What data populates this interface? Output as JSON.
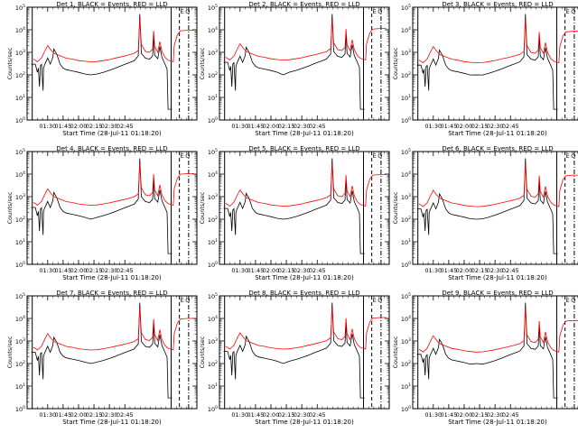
{
  "chart_data": [
    {
      "type": "line",
      "title": "Det 1, BLACK = Events, RED = LLD",
      "series_black_name": "Events",
      "series_red_name": "LLD",
      "xlabel": "Start Time (28-Jul-11 01:18:20)",
      "ylabel": "Counts/sec",
      "xtick_labels": [
        "01:30",
        "01:45",
        "02:00",
        "02:15",
        "02:30",
        "02:45"
      ],
      "ytick_exponents": [
        "0",
        "1",
        "2",
        "3",
        "4",
        "5"
      ],
      "yscale": "log",
      "ylim": [
        1,
        100000
      ],
      "marker_labels": [
        "E",
        "O"
      ]
    },
    {
      "type": "line",
      "title": "Det 2, BLACK = Events, RED = LLD",
      "series_black_name": "Events",
      "series_red_name": "LLD",
      "xlabel": "Start Time (28-Jul-11 01:18:20)",
      "ylabel": "Counts/sec",
      "xtick_labels": [
        "01:30",
        "01:45",
        "02:00",
        "02:15",
        "02:30",
        "02:45"
      ],
      "ytick_exponents": [
        "0",
        "1",
        "2",
        "3",
        "4",
        "5"
      ],
      "yscale": "log",
      "ylim": [
        1,
        100000
      ],
      "marker_labels": [
        "E",
        "O"
      ]
    },
    {
      "type": "line",
      "title": "Det 3, BLACK = Events, RED = LLD",
      "series_black_name": "Events",
      "series_red_name": "LLD",
      "xlabel": "Start Time (28-Jul-11 01:18:20)",
      "ylabel": "Counts/sec",
      "xtick_labels": [
        "01:30",
        "01:45",
        "02:00",
        "02:15",
        "02:30",
        "02:45"
      ],
      "ytick_exponents": [
        "0",
        "1",
        "2",
        "3",
        "4",
        "5"
      ],
      "yscale": "log",
      "ylim": [
        1,
        100000
      ],
      "marker_labels": [
        "E",
        "O"
      ]
    },
    {
      "type": "line",
      "title": "Det 4, BLACK = Events, RED = LLD",
      "series_black_name": "Events",
      "series_red_name": "LLD",
      "xlabel": "Start Time (28-Jul-11 01:18:20)",
      "ylabel": "Counts/sec",
      "xtick_labels": [
        "01:30",
        "01:45",
        "02:00",
        "02:15",
        "02:30",
        "02:45"
      ],
      "ytick_exponents": [
        "0",
        "1",
        "2",
        "3",
        "4",
        "5"
      ],
      "yscale": "log",
      "ylim": [
        1,
        100000
      ],
      "marker_labels": [
        "E",
        "O"
      ]
    },
    {
      "type": "line",
      "title": "Det 5, BLACK = Events, RED = LLD",
      "series_black_name": "Events",
      "series_red_name": "LLD",
      "xlabel": "Start Time (28-Jul-11 01:18:20)",
      "ylabel": "Counts/sec",
      "xtick_labels": [
        "01:30",
        "01:45",
        "02:00",
        "02:15",
        "02:30",
        "02:45"
      ],
      "ytick_exponents": [
        "0",
        "1",
        "2",
        "3",
        "4",
        "5"
      ],
      "yscale": "log",
      "ylim": [
        1,
        100000
      ],
      "marker_labels": [
        "E",
        "O"
      ]
    },
    {
      "type": "line",
      "title": "Det 6, BLACK = Events, RED = LLD",
      "series_black_name": "Events",
      "series_red_name": "LLD",
      "xlabel": "Start Time (28-Jul-11 01:18:20)",
      "ylabel": "Counts/sec",
      "xtick_labels": [
        "01:30",
        "01:45",
        "02:00",
        "02:15",
        "02:30",
        "02:45"
      ],
      "ytick_exponents": [
        "0",
        "1",
        "2",
        "3",
        "4",
        "5"
      ],
      "yscale": "log",
      "ylim": [
        1,
        100000
      ],
      "marker_labels": [
        "E",
        "O"
      ]
    },
    {
      "type": "line",
      "title": "Det 7, BLACK = Events, RED = LLD",
      "series_black_name": "Events",
      "series_red_name": "LLD",
      "xlabel": "Start Time (28-Jul-11 01:18:20)",
      "ylabel": "Counts/sec",
      "xtick_labels": [
        "01:30",
        "01:45",
        "02:00",
        "02:15",
        "02:30",
        "02:45"
      ],
      "ytick_exponents": [
        "0",
        "1",
        "2",
        "3",
        "4",
        "5"
      ],
      "yscale": "log",
      "ylim": [
        1,
        100000
      ],
      "marker_labels": [
        "E",
        "O"
      ]
    },
    {
      "type": "line",
      "title": "Det 8, BLACK = Events, RED = LLD",
      "series_black_name": "Events",
      "series_red_name": "LLD",
      "xlabel": "Start Time (28-Jul-11 01:18:20)",
      "ylabel": "Counts/sec",
      "xtick_labels": [
        "01:30",
        "01:45",
        "02:00",
        "02:15",
        "02:30",
        "02:45"
      ],
      "ytick_exponents": [
        "0",
        "1",
        "2",
        "3",
        "4",
        "5"
      ],
      "yscale": "log",
      "ylim": [
        1,
        100000
      ],
      "marker_labels": [
        "E",
        "O"
      ]
    },
    {
      "type": "line",
      "title": "Det 9, BLACK = Events, RED = LLD",
      "series_black_name": "Events",
      "series_red_name": "LLD",
      "xlabel": "Start Time (28-Jul-11 01:18:20)",
      "ylabel": "Counts/sec",
      "xtick_labels": [
        "01:30",
        "01:45",
        "02:00",
        "02:15",
        "02:30",
        "02:45"
      ],
      "ytick_exponents": [
        "0",
        "1",
        "2",
        "3",
        "4",
        "5"
      ],
      "yscale": "log",
      "ylim": [
        1,
        100000
      ],
      "marker_labels": [
        "E",
        "O"
      ]
    }
  ],
  "colors": {
    "events": "#000000",
    "lld": "#ff0000",
    "background": "#ffffff"
  },
  "approx_series": {
    "red": [
      [
        1,
        500
      ],
      [
        3,
        450
      ],
      [
        5,
        380
      ],
      [
        9,
        560
      ],
      [
        12,
        1100
      ],
      [
        15,
        2000
      ],
      [
        18,
        1300
      ],
      [
        21,
        900
      ],
      [
        27,
        700
      ],
      [
        33,
        550
      ],
      [
        39,
        500
      ],
      [
        45,
        430
      ],
      [
        51,
        400
      ],
      [
        57,
        380
      ],
      [
        63,
        390
      ],
      [
        69,
        430
      ],
      [
        75,
        480
      ],
      [
        81,
        560
      ],
      [
        87,
        640
      ],
      [
        93,
        750
      ],
      [
        99,
        900
      ],
      [
        103,
        1200
      ],
      [
        104.5,
        30000
      ],
      [
        106,
        2200
      ],
      [
        110,
        1100
      ],
      [
        114,
        1000
      ],
      [
        117,
        1400
      ],
      [
        118,
        9000
      ],
      [
        119,
        1800
      ],
      [
        122,
        1000
      ],
      [
        124,
        3000
      ],
      [
        126,
        1100
      ],
      [
        129,
        600
      ],
      [
        132,
        450
      ],
      [
        134,
        420
      ],
      [
        137,
        380
      ],
      [
        138,
        2000
      ],
      [
        141,
        6000
      ],
      [
        144,
        9000
      ],
      [
        151,
        9500
      ],
      [
        157,
        9500
      ]
    ],
    "black": [
      [
        -1,
        300
      ],
      [
        1,
        300
      ],
      [
        3,
        300
      ],
      [
        5,
        130
      ],
      [
        6,
        200
      ],
      [
        7,
        30
      ],
      [
        8,
        260
      ],
      [
        9,
        290
      ],
      [
        10.5,
        20
      ],
      [
        11,
        200
      ],
      [
        12,
        280
      ],
      [
        15,
        560
      ],
      [
        17.5,
        300
      ],
      [
        20,
        600
      ],
      [
        21,
        1400
      ],
      [
        24,
        800
      ],
      [
        27,
        300
      ],
      [
        30,
        200
      ],
      [
        33,
        170
      ],
      [
        39,
        150
      ],
      [
        45,
        130
      ],
      [
        51,
        110
      ],
      [
        57,
        100
      ],
      [
        63,
        110
      ],
      [
        69,
        130
      ],
      [
        75,
        160
      ],
      [
        81,
        200
      ],
      [
        87,
        260
      ],
      [
        93,
        330
      ],
      [
        99,
        420
      ],
      [
        103,
        700
      ],
      [
        104.5,
        50000
      ],
      [
        106,
        900
      ],
      [
        110,
        550
      ],
      [
        114,
        500
      ],
      [
        117,
        700
      ],
      [
        118,
        5000
      ],
      [
        119,
        750
      ],
      [
        122,
        520
      ],
      [
        124,
        1800
      ],
      [
        126,
        600
      ],
      [
        129,
        300
      ],
      [
        131,
        180
      ],
      [
        132,
        3
      ],
      [
        136,
        3
      ]
    ]
  }
}
